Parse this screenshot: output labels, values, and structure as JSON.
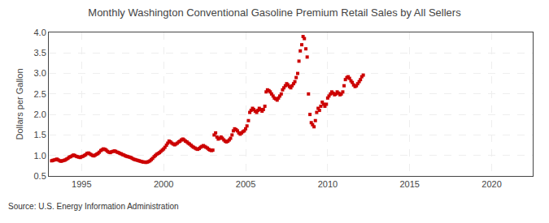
{
  "chart_data": {
    "type": "scatter",
    "title": "Monthly Washington Conventional Gasoline Premium Retail Sales by All Sellers",
    "ylabel": "Dollars per Gallon",
    "source": "Source: U.S. Energy Information Administration",
    "color": "#cc0000",
    "marker": "square",
    "grid": true,
    "xlim": [
      1993.0,
      2022.5
    ],
    "xticks": [
      1995,
      2000,
      2005,
      2010,
      2015,
      2020
    ],
    "ylim": [
      0.5,
      4.0
    ],
    "yticks": [
      0.5,
      {
        "value": 1.0,
        "label": "1.0"
      },
      1.5,
      {
        "value": 2.0,
        "label": "2.0"
      },
      2.5,
      {
        "value": 3.0,
        "label": "3.0"
      },
      3.5,
      {
        "value": 4.0,
        "label": "4.0"
      }
    ],
    "x": [
      1993.17,
      1993.25,
      1993.33,
      1993.42,
      1993.5,
      1993.58,
      1993.67,
      1993.75,
      1993.83,
      1993.92,
      1994.0,
      1994.08,
      1994.17,
      1994.25,
      1994.33,
      1994.42,
      1994.5,
      1994.58,
      1994.67,
      1994.75,
      1994.83,
      1994.92,
      1995.0,
      1995.08,
      1995.17,
      1995.25,
      1995.33,
      1995.42,
      1995.5,
      1995.58,
      1995.67,
      1995.75,
      1995.83,
      1995.92,
      1996.0,
      1996.08,
      1996.17,
      1996.25,
      1996.33,
      1996.42,
      1996.5,
      1996.58,
      1996.67,
      1996.75,
      1996.83,
      1996.92,
      1997.0,
      1997.08,
      1997.17,
      1997.25,
      1997.33,
      1997.42,
      1997.5,
      1997.58,
      1997.67,
      1997.75,
      1997.83,
      1997.92,
      1998.0,
      1998.08,
      1998.17,
      1998.25,
      1998.33,
      1998.42,
      1998.5,
      1998.58,
      1998.67,
      1998.75,
      1998.83,
      1998.92,
      1999.0,
      1999.08,
      1999.17,
      1999.25,
      1999.33,
      1999.42,
      1999.5,
      1999.58,
      1999.67,
      1999.75,
      1999.83,
      1999.92,
      2000.0,
      2000.08,
      2000.17,
      2000.25,
      2000.33,
      2000.42,
      2000.5,
      2000.58,
      2000.67,
      2000.75,
      2000.83,
      2000.92,
      2001.0,
      2001.08,
      2001.17,
      2001.25,
      2001.33,
      2001.42,
      2001.5,
      2001.58,
      2001.67,
      2001.75,
      2001.83,
      2001.92,
      2002.0,
      2002.08,
      2002.17,
      2002.25,
      2002.33,
      2002.42,
      2002.5,
      2002.58,
      2002.67,
      2002.75,
      2002.83,
      2002.92,
      2003.0,
      2003.08,
      2003.17,
      2003.25,
      2003.33,
      2003.42,
      2003.5,
      2003.58,
      2003.67,
      2003.75,
      2003.83,
      2003.92,
      2004.0,
      2004.08,
      2004.17,
      2004.25,
      2004.33,
      2004.42,
      2004.5,
      2004.58,
      2004.67,
      2004.75,
      2004.83,
      2004.92,
      2005.0,
      2005.08,
      2005.17,
      2005.25,
      2005.33,
      2005.42,
      2005.5,
      2005.58,
      2005.67,
      2005.75,
      2005.83,
      2005.92,
      2006.0,
      2006.08,
      2006.17,
      2006.25,
      2006.33,
      2006.42,
      2006.5,
      2006.58,
      2006.67,
      2006.75,
      2006.83,
      2006.92,
      2007.0,
      2007.08,
      2007.17,
      2007.25,
      2007.33,
      2007.42,
      2007.5,
      2007.58,
      2007.67,
      2007.75,
      2007.83,
      2007.92,
      2008.0,
      2008.08,
      2008.17,
      2008.25,
      2008.33,
      2008.42,
      2008.5,
      2008.58,
      2008.67,
      2008.75,
      2008.83,
      2008.92,
      2009.0,
      2009.08,
      2009.17,
      2009.25,
      2009.33,
      2009.42,
      2009.5,
      2009.58,
      2009.67,
      2009.75,
      2009.83,
      2009.92,
      2010.0,
      2010.08,
      2010.17,
      2010.25,
      2010.33,
      2010.42,
      2010.5,
      2010.58,
      2010.67,
      2010.75,
      2010.83,
      2010.92,
      2011.0,
      2011.08,
      2011.17,
      2011.25,
      2011.33,
      2011.42,
      2011.5,
      2011.58,
      2011.67,
      2011.75,
      2011.83,
      2011.92,
      2012.0,
      2012.08,
      2012.17
    ],
    "values": [
      0.87,
      0.88,
      0.89,
      0.9,
      0.91,
      0.89,
      0.87,
      0.86,
      0.87,
      0.88,
      0.89,
      0.91,
      0.93,
      0.96,
      0.97,
      0.99,
      1.01,
      1.0,
      0.98,
      0.97,
      0.96,
      0.95,
      0.97,
      0.98,
      1.0,
      1.02,
      1.05,
      1.06,
      1.04,
      1.02,
      1.0,
      0.99,
      1.01,
      1.03,
      1.05,
      1.08,
      1.12,
      1.14,
      1.16,
      1.15,
      1.13,
      1.1,
      1.08,
      1.07,
      1.09,
      1.1,
      1.11,
      1.1,
      1.08,
      1.07,
      1.05,
      1.04,
      1.02,
      1.01,
      0.99,
      0.98,
      0.97,
      0.96,
      0.95,
      0.93,
      0.91,
      0.9,
      0.89,
      0.88,
      0.87,
      0.86,
      0.85,
      0.84,
      0.84,
      0.83,
      0.84,
      0.85,
      0.87,
      0.9,
      0.93,
      0.97,
      1.0,
      1.03,
      1.05,
      1.07,
      1.1,
      1.13,
      1.16,
      1.2,
      1.25,
      1.3,
      1.35,
      1.33,
      1.3,
      1.28,
      1.26,
      1.28,
      1.3,
      1.33,
      1.35,
      1.38,
      1.4,
      1.38,
      1.35,
      1.33,
      1.3,
      1.28,
      1.25,
      1.22,
      1.2,
      1.18,
      1.16,
      1.15,
      1.17,
      1.2,
      1.22,
      1.24,
      1.22,
      1.2,
      1.18,
      1.15,
      1.13,
      1.12,
      1.13,
      1.5,
      1.55,
      1.45,
      1.4,
      1.42,
      1.45,
      1.42,
      1.38,
      1.35,
      1.33,
      1.35,
      1.38,
      1.42,
      1.5,
      1.6,
      1.65,
      1.63,
      1.6,
      1.55,
      1.52,
      1.55,
      1.58,
      1.6,
      1.65,
      1.72,
      1.85,
      2.05,
      2.1,
      2.15,
      2.12,
      2.08,
      2.05,
      2.1,
      2.15,
      2.12,
      2.08,
      2.12,
      2.2,
      2.55,
      2.6,
      2.58,
      2.55,
      2.5,
      2.45,
      2.4,
      2.38,
      2.35,
      2.4,
      2.45,
      2.5,
      2.6,
      2.65,
      2.7,
      2.75,
      2.72,
      2.68,
      2.65,
      2.7,
      2.75,
      2.8,
      2.9,
      3.0,
      3.3,
      3.55,
      3.7,
      3.9,
      3.85,
      3.6,
      3.4,
      2.5,
      2.0,
      1.8,
      1.75,
      1.7,
      1.85,
      2.05,
      2.15,
      2.1,
      2.2,
      2.3,
      2.25,
      2.2,
      2.25,
      2.4,
      2.45,
      2.5,
      2.55,
      2.52,
      2.48,
      2.5,
      2.55,
      2.52,
      2.48,
      2.5,
      2.55,
      2.7,
      2.85,
      2.9,
      2.92,
      2.88,
      2.82,
      2.78,
      2.72,
      2.68,
      2.7,
      2.75,
      2.8,
      2.85,
      2.92,
      2.96
    ]
  }
}
